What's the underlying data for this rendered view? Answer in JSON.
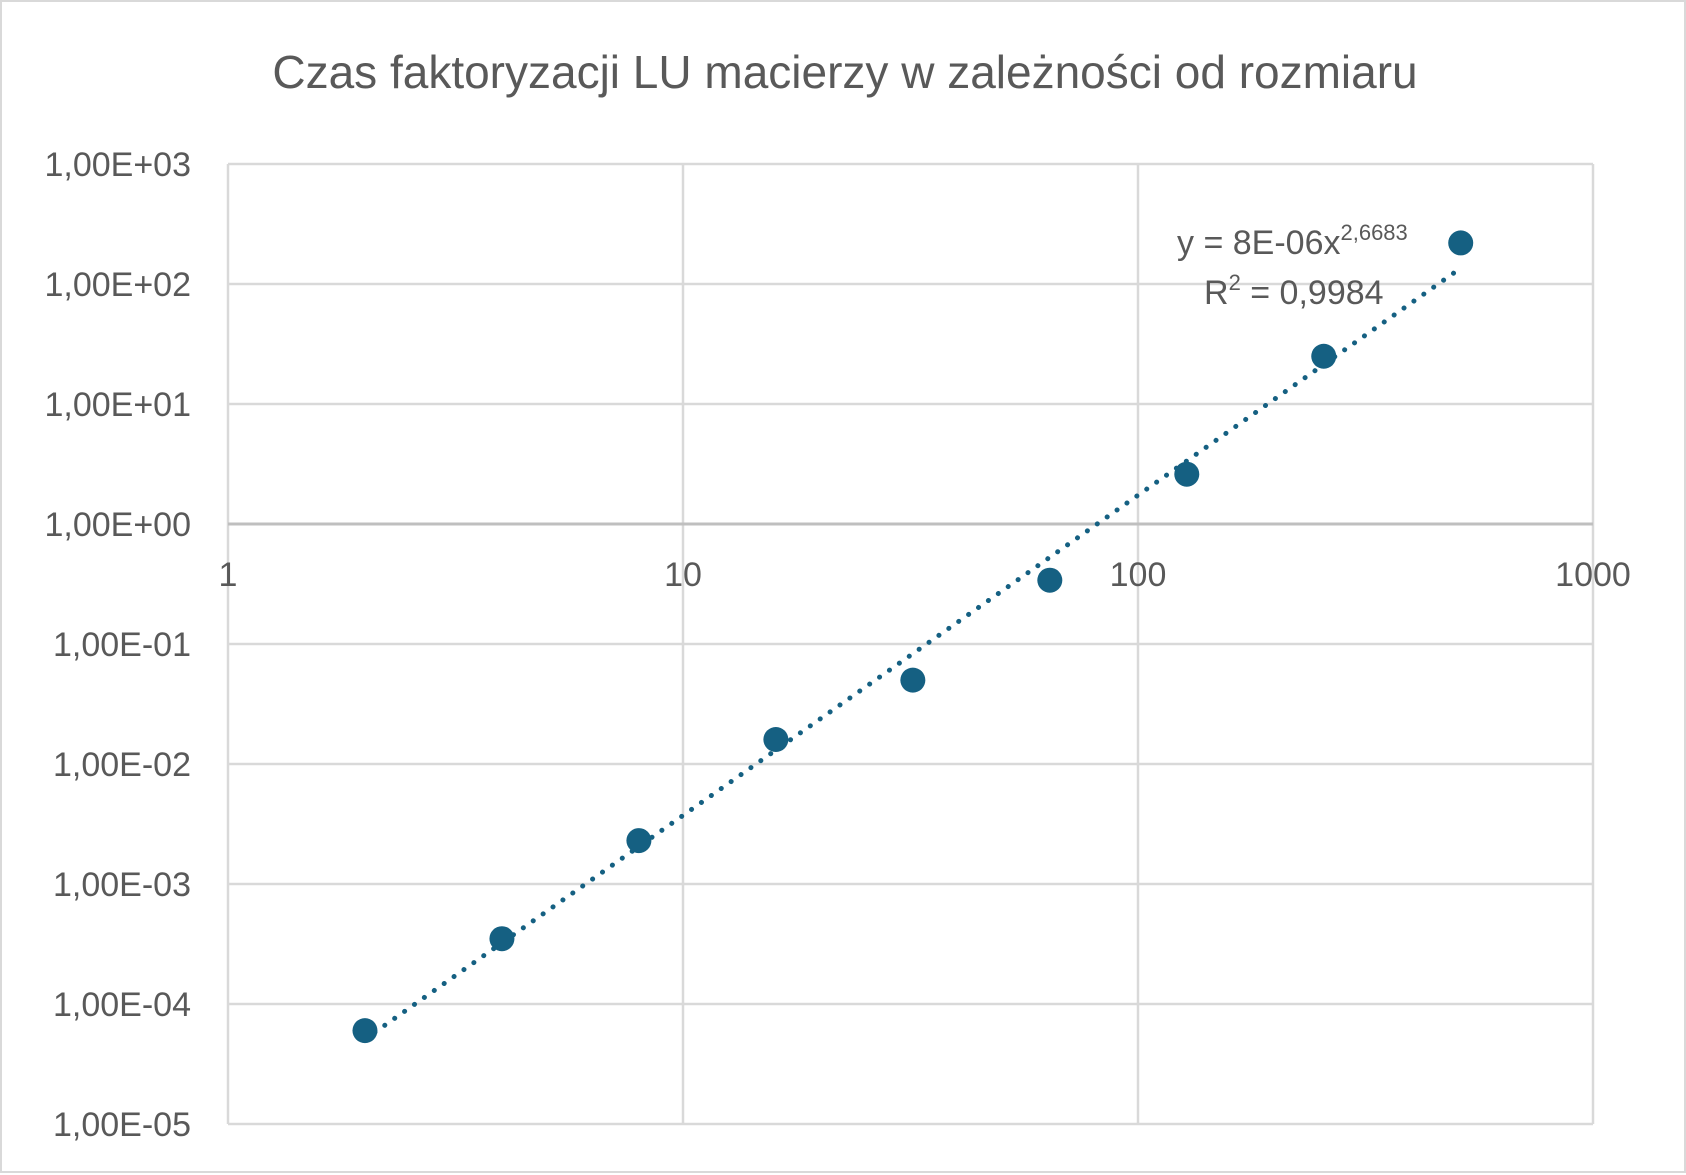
{
  "chart_data": {
    "type": "scatter",
    "title": "Czas faktoryzacji LU macierzy w zależności od rozmiaru",
    "xlabel": "",
    "ylabel": "",
    "x_scale": "log",
    "y_scale": "log",
    "xlim": [
      1,
      1000
    ],
    "ylim": [
      1e-05,
      1000
    ],
    "x_tick_values": [
      1,
      10,
      100,
      1000
    ],
    "x_tick_labels": [
      "1",
      "10",
      "100",
      "1000"
    ],
    "y_tick_values": [
      1000,
      100,
      10,
      1,
      0.1,
      0.01,
      0.001,
      0.0001,
      1e-05
    ],
    "y_tick_labels": [
      "1,00E+03",
      "1,00E+02",
      "1,00E+01",
      "1,00E+00",
      "1,00E-01",
      "1,00E-02",
      "1,00E-03",
      "1,00E-04",
      "1,00E-05"
    ],
    "grid": true,
    "x_axis_crosses_y": 1,
    "series": [
      {
        "x": [
          2,
          4,
          8,
          16,
          32,
          64,
          128,
          256,
          512
        ],
        "y": [
          6e-05,
          0.00035,
          0.0023,
          0.016,
          0.05,
          0.34,
          2.6,
          25,
          220
        ],
        "color": "#156082"
      }
    ],
    "trendline": {
      "type": "power",
      "coefficient": 8e-06,
      "exponent": 2.6683,
      "x_range": [
        2,
        512
      ],
      "style": "dotted",
      "color": "#156082",
      "equation_text": "y = 8E-06x",
      "equation_exponent": "2,6683",
      "r2_label": "R",
      "r2_power": "2",
      "r2_value_text": " = 0,9984"
    }
  }
}
